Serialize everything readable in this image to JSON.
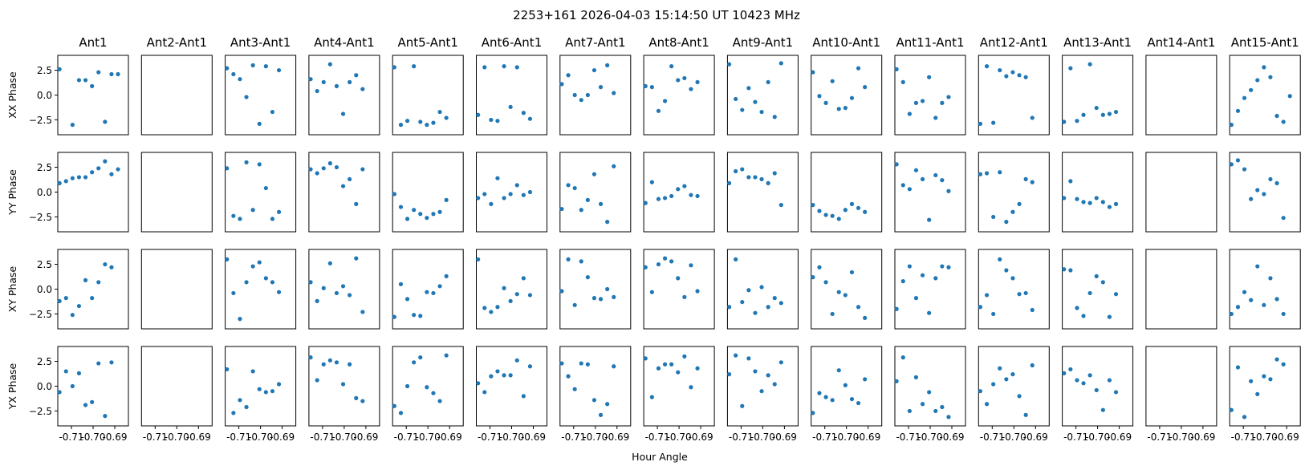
{
  "title": "2253+161  2026-04-03 15:14:50 UT  10423 MHz",
  "chart_data": {
    "type": "scatter",
    "title": "2253+161  2026-04-03 15:14:50 UT  10423 MHz",
    "xlabel": "Hour Angle",
    "columns": [
      "Ant1",
      "Ant2-Ant1",
      "Ant3-Ant1",
      "Ant4-Ant1",
      "Ant5-Ant1",
      "Ant6-Ant1",
      "Ant7-Ant1",
      "Ant8-Ant1",
      "Ant9-Ant1",
      "Ant10-Ant1",
      "Ant11-Ant1",
      "Ant12-Ant1",
      "Ant13-Ant1",
      "Ant14-Ant1",
      "Ant15-Ant1"
    ],
    "rows": [
      "XX Phase",
      "YY Phase",
      "XY Phase",
      "YX Phase"
    ],
    "xlim": [
      -0.7163,
      -0.6837
    ],
    "ylim": [
      -4.0,
      4.0
    ],
    "xticks": [
      -0.71,
      -0.7,
      -0.69
    ],
    "xticklabels": [
      "-0.71",
      "-0.70",
      "-0.69"
    ],
    "yticks": [
      2.5,
      0.0,
      -2.5
    ],
    "yticklabels": [
      "2.5",
      "0.0",
      "−2.5"
    ],
    "marker_color": "#1f77b4",
    "x": [
      -0.7155,
      -0.7125,
      -0.7095,
      -0.7065,
      -0.7035,
      -0.7005,
      -0.6975,
      -0.6945,
      -0.6915,
      -0.6885,
      -0.6855
    ],
    "series": [
      [
        [
          2.6,
          null,
          -3.0,
          1.5,
          1.5,
          0.9,
          2.3,
          -2.7,
          2.1,
          2.1,
          null
        ],
        [],
        [
          2.7,
          2.1,
          1.6,
          -0.2,
          3.0,
          -2.9,
          2.9,
          -1.7,
          2.5,
          null,
          null
        ],
        [
          1.6,
          0.4,
          1.3,
          3.1,
          0.9,
          -1.9,
          1.3,
          2.0,
          0.6,
          null,
          null
        ],
        [
          2.8,
          -3.0,
          -2.6,
          2.9,
          -2.7,
          -3.0,
          -2.8,
          -1.7,
          -2.3,
          null,
          null
        ],
        [
          -2.0,
          2.8,
          -2.5,
          -2.6,
          2.9,
          -1.2,
          2.8,
          -1.8,
          -2.4,
          null,
          null
        ],
        [
          1.1,
          2.0,
          0.0,
          -0.5,
          0.0,
          2.5,
          0.8,
          3.0,
          0.2,
          null,
          null
        ],
        [
          0.9,
          0.8,
          -1.6,
          -0.6,
          2.9,
          1.5,
          1.7,
          0.6,
          1.3,
          null,
          null
        ],
        [
          3.1,
          -0.4,
          -1.5,
          0.7,
          -0.7,
          -1.7,
          1.3,
          -2.2,
          3.2,
          null,
          null
        ],
        [
          2.3,
          -0.1,
          -0.8,
          1.4,
          -1.4,
          -1.3,
          -0.3,
          2.7,
          0.8,
          null,
          null
        ],
        [
          2.6,
          1.3,
          -1.9,
          -0.8,
          -0.6,
          1.8,
          -2.3,
          -0.8,
          -0.2,
          null,
          null
        ],
        [
          -2.9,
          2.9,
          -2.8,
          2.5,
          1.9,
          2.3,
          2.0,
          1.8,
          -2.3,
          null,
          null
        ],
        [
          -2.7,
          2.7,
          -2.6,
          -2.0,
          3.1,
          -1.3,
          -2.0,
          -1.9,
          -1.7,
          null,
          null
        ],
        [],
        [
          -3.0,
          -1.6,
          -0.3,
          0.5,
          1.5,
          2.8,
          1.8,
          -2.1,
          -2.7,
          -0.1,
          null
        ]
      ],
      [
        [
          0.9,
          1.1,
          1.4,
          1.5,
          1.5,
          2.0,
          2.4,
          3.1,
          1.8,
          2.3,
          null
        ],
        [],
        [
          2.4,
          -2.4,
          -2.7,
          3.0,
          -1.8,
          2.8,
          0.4,
          -2.7,
          -2.0,
          null,
          null
        ],
        [
          2.3,
          1.9,
          2.4,
          2.9,
          2.5,
          0.6,
          1.3,
          -1.2,
          2.3,
          null,
          null
        ],
        [
          -0.2,
          -1.5,
          -2.7,
          -1.8,
          -2.2,
          -2.6,
          -2.2,
          -2.0,
          -0.8,
          null,
          null
        ],
        [
          -0.6,
          -0.2,
          -1.2,
          1.4,
          -0.6,
          -0.2,
          0.7,
          -0.3,
          0.0,
          null,
          null
        ],
        [
          -1.7,
          0.7,
          0.4,
          -1.8,
          -0.8,
          1.8,
          -1.2,
          -3.0,
          2.6,
          null,
          null
        ],
        [
          -1.1,
          1.0,
          -0.7,
          -0.6,
          -0.4,
          0.3,
          0.6,
          -0.3,
          -0.4,
          null,
          null
        ],
        [
          0.9,
          2.1,
          2.3,
          1.5,
          1.5,
          1.3,
          0.9,
          1.9,
          -1.3,
          null,
          null
        ],
        [
          -1.3,
          -1.9,
          -2.3,
          -2.4,
          -2.7,
          -1.8,
          -1.2,
          -1.6,
          -2.0,
          null,
          null
        ],
        [
          2.8,
          0.7,
          0.3,
          2.2,
          1.3,
          -2.8,
          1.7,
          1.2,
          0.1,
          null,
          null
        ],
        [
          1.8,
          1.9,
          -2.5,
          2.0,
          -3.0,
          -2.0,
          -1.2,
          1.3,
          1.0,
          null,
          null
        ],
        [
          -0.6,
          1.1,
          -0.7,
          -1.0,
          -1.1,
          -0.6,
          -1.0,
          -1.5,
          -1.2,
          null,
          null
        ],
        [],
        [
          2.8,
          3.2,
          2.3,
          -0.7,
          0.2,
          -0.2,
          1.3,
          0.9,
          -2.6,
          null,
          null
        ]
      ],
      [
        [
          -1.2,
          -0.9,
          -2.6,
          -1.7,
          0.9,
          -0.9,
          0.7,
          2.5,
          2.2,
          null,
          null
        ],
        [],
        [
          3.0,
          -0.4,
          -3.0,
          0.7,
          2.3,
          2.7,
          1.1,
          0.7,
          -0.3,
          null,
          null
        ],
        [
          0.7,
          -1.2,
          0.1,
          2.6,
          -0.4,
          0.3,
          -0.6,
          3.1,
          -2.3,
          null,
          null
        ],
        [
          -2.8,
          0.5,
          -1.0,
          -2.6,
          -2.7,
          -0.3,
          -0.4,
          0.3,
          1.3,
          null,
          null
        ],
        [
          3.0,
          -1.9,
          -2.3,
          -1.8,
          0.1,
          -1.2,
          -0.5,
          1.1,
          -0.6,
          null,
          null
        ],
        [
          -0.2,
          3.0,
          -1.6,
          2.8,
          1.2,
          -0.9,
          -1.0,
          0.0,
          -0.8,
          null,
          null
        ],
        [
          2.2,
          -0.3,
          2.5,
          3.1,
          2.8,
          1.1,
          -0.8,
          2.4,
          -0.2,
          null,
          null
        ],
        [
          -1.8,
          3.0,
          -1.3,
          -0.1,
          -2.4,
          0.2,
          -1.8,
          -0.9,
          -1.4,
          null,
          null
        ],
        [
          1.2,
          2.2,
          0.7,
          -2.5,
          -0.3,
          -0.6,
          1.7,
          -1.8,
          -2.9,
          null,
          null
        ],
        [
          -2.0,
          0.8,
          2.3,
          -0.9,
          1.4,
          -2.4,
          1.1,
          2.3,
          2.2,
          null,
          null
        ],
        [
          -1.8,
          -0.6,
          -2.5,
          3.0,
          1.9,
          1.1,
          -0.5,
          -0.4,
          -2.1,
          null,
          null
        ],
        [
          2.0,
          1.9,
          -1.9,
          -2.7,
          -0.4,
          1.3,
          0.7,
          -2.8,
          -0.5,
          null,
          null
        ],
        [],
        [
          -2.5,
          -1.8,
          -0.3,
          -1.1,
          2.3,
          -1.6,
          1.1,
          -1.0,
          -2.5,
          null,
          null
        ]
      ],
      [
        [
          -0.6,
          1.5,
          0.0,
          1.3,
          -1.9,
          -1.6,
          2.3,
          -3.0,
          2.4,
          null,
          null
        ],
        [],
        [
          1.7,
          -2.7,
          -1.4,
          -2.1,
          1.5,
          -0.3,
          -0.6,
          -0.5,
          0.2,
          null,
          null
        ],
        [
          2.9,
          0.6,
          2.2,
          2.6,
          2.4,
          0.2,
          2.2,
          -1.2,
          -1.5,
          null,
          null
        ],
        [
          -2.0,
          -2.7,
          0.0,
          2.4,
          2.9,
          -0.1,
          -0.7,
          -1.5,
          3.1,
          null,
          null
        ],
        [
          0.3,
          -0.6,
          1.0,
          1.5,
          1.1,
          1.1,
          2.6,
          -1.0,
          2.0,
          null,
          null
        ],
        [
          2.3,
          1.0,
          -0.3,
          2.3,
          2.2,
          -1.4,
          -2.9,
          -1.8,
          2.0,
          null,
          null
        ],
        [
          2.8,
          -1.1,
          1.8,
          2.2,
          2.2,
          1.4,
          3.0,
          -0.1,
          1.8,
          null,
          null
        ],
        [
          1.2,
          3.1,
          -2.0,
          2.8,
          1.5,
          -0.5,
          1.1,
          0.2,
          2.4,
          null,
          null
        ],
        [
          -2.7,
          -0.7,
          -1.1,
          -1.4,
          1.6,
          0.1,
          -1.3,
          -1.7,
          0.7,
          null,
          null
        ],
        [
          0.5,
          2.9,
          -2.5,
          0.9,
          -1.8,
          -0.6,
          -2.5,
          -2.1,
          -3.1,
          null,
          null
        ],
        [
          -0.5,
          -1.8,
          0.2,
          1.8,
          0.7,
          1.2,
          -1.0,
          -2.9,
          2.1,
          null,
          null
        ],
        [
          1.3,
          1.7,
          0.6,
          0.3,
          1.1,
          -0.4,
          -2.4,
          0.6,
          -0.6,
          null,
          null
        ],
        [],
        [
          -2.4,
          1.9,
          -3.1,
          0.5,
          -0.8,
          1.0,
          0.7,
          2.7,
          2.2,
          null,
          null
        ]
      ]
    ]
  }
}
